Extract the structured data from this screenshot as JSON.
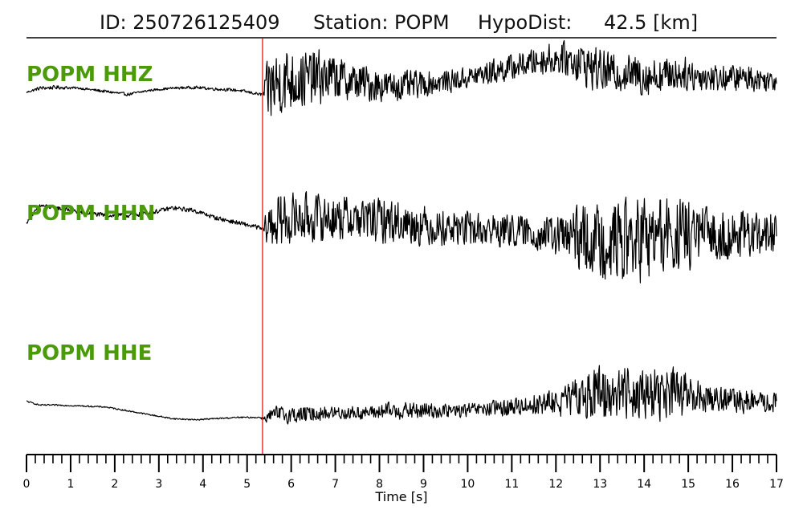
{
  "title": {
    "id_text": "ID: 250726125409",
    "station_text": "Station: POPM",
    "dist_label": "HypoDist:",
    "dist_value": "42.5 [km]"
  },
  "colors": {
    "label": "#4a9a0a",
    "pick_line": "#ee2222",
    "trace": "#000000"
  },
  "chart_data": {
    "type": "line",
    "xlabel": "Time [s]",
    "xlim": [
      0,
      17
    ],
    "x_ticks": [
      "0",
      "1",
      "2",
      "3",
      "4",
      "5",
      "6",
      "7",
      "8",
      "9",
      "10",
      "11",
      "12",
      "13",
      "14",
      "15",
      "16",
      "17"
    ],
    "minor_tick_step": 0.2,
    "grid": false,
    "legend": "none",
    "pick_time": 5.35,
    "series": [
      {
        "name": "POPM HHZ",
        "channel": "HHZ",
        "t": [
          0,
          0.3,
          0.7,
          1.2,
          1.8,
          2.3,
          2.8,
          3.3,
          3.8,
          4.3,
          4.8,
          5.3,
          5.35,
          5.5,
          5.65,
          5.85,
          6.2,
          6.6,
          7,
          7.4,
          7.8,
          8.2,
          8.6,
          9,
          9.4,
          9.8,
          10.2,
          10.6,
          11,
          11.4,
          11.8,
          12.2,
          12.5,
          12.8,
          13.1,
          13.4,
          13.7,
          14,
          14.3,
          14.6,
          14.9,
          15.2,
          15.5,
          15.8,
          16.1,
          16.4,
          16.7,
          17
        ],
        "env": [
          0.02,
          0.05,
          0.05,
          0.03,
          0.04,
          0.04,
          0.03,
          0.03,
          0.04,
          0.04,
          0.04,
          0.04,
          0.05,
          1.0,
          0.95,
          0.9,
          0.8,
          0.75,
          0.6,
          0.5,
          0.5,
          0.4,
          0.4,
          0.35,
          0.3,
          0.3,
          0.3,
          0.35,
          0.35,
          0.35,
          0.4,
          0.45,
          0.55,
          0.6,
          0.55,
          0.5,
          0.5,
          0.55,
          0.5,
          0.45,
          0.45,
          0.4,
          0.4,
          0.35,
          0.35,
          0.35,
          0.3,
          0.3
        ],
        "mean": [
          0,
          0.1,
          0.12,
          0.1,
          0.02,
          -0.05,
          0.05,
          0.1,
          0.12,
          0.08,
          0.05,
          -0.05,
          -0.05,
          0.1,
          0.2,
          0.3,
          0.3,
          0.35,
          0.35,
          0.25,
          0.2,
          0.15,
          0.15,
          0.2,
          0.25,
          0.3,
          0.4,
          0.5,
          0.6,
          0.7,
          0.8,
          0.8,
          0.75,
          0.6,
          0.5,
          0.45,
          0.45,
          0.4,
          0.4,
          0.45,
          0.45,
          0.4,
          0.35,
          0.35,
          0.35,
          0.35,
          0.3,
          0.3
        ]
      },
      {
        "name": "POPM HHN",
        "channel": "HHN",
        "t": [
          0,
          0.3,
          0.7,
          1.2,
          1.8,
          2.3,
          2.8,
          3.3,
          3.8,
          4.3,
          4.8,
          5.3,
          5.35,
          5.5,
          5.65,
          5.85,
          6.2,
          6.6,
          7,
          7.4,
          7.8,
          8.2,
          8.6,
          9,
          9.4,
          9.8,
          10.2,
          10.6,
          11,
          11.4,
          11.8,
          12.2,
          12.5,
          12.8,
          13.1,
          13.4,
          13.7,
          14,
          14.3,
          14.6,
          14.9,
          15.2,
          15.5,
          15.8,
          16.1,
          16.4,
          16.7,
          17
        ],
        "env": [
          0.03,
          0.05,
          0.05,
          0.05,
          0.05,
          0.05,
          0.05,
          0.05,
          0.05,
          0.05,
          0.05,
          0.05,
          0.08,
          0.55,
          0.6,
          0.6,
          0.55,
          0.55,
          0.5,
          0.5,
          0.5,
          0.5,
          0.45,
          0.45,
          0.4,
          0.4,
          0.4,
          0.4,
          0.35,
          0.35,
          0.4,
          0.6,
          0.7,
          0.75,
          0.85,
          0.9,
          0.95,
          1.0,
          0.95,
          0.9,
          0.8,
          0.7,
          0.6,
          0.55,
          0.55,
          0.5,
          0.5,
          0.5
        ],
        "mean": [
          0.2,
          0.55,
          0.5,
          0.42,
          0.35,
          0.35,
          0.4,
          0.5,
          0.45,
          0.3,
          0.2,
          0.1,
          0.05,
          0.15,
          0.2,
          0.25,
          0.3,
          0.3,
          0.3,
          0.3,
          0.25,
          0.25,
          0.2,
          0.15,
          0.1,
          0.1,
          0.05,
          0.05,
          0.05,
          0,
          -0.05,
          -0.1,
          -0.1,
          -0.15,
          -0.15,
          -0.15,
          -0.15,
          -0.15,
          -0.1,
          -0.1,
          -0.05,
          -0.05,
          -0.05,
          -0.05,
          -0.05,
          -0.05,
          -0.05,
          -0.05
        ]
      },
      {
        "name": "POPM HHE",
        "channel": "HHE",
        "t": [
          0,
          0.3,
          0.7,
          1.2,
          1.8,
          2.3,
          2.8,
          3.3,
          3.8,
          4.3,
          4.8,
          5.3,
          5.35,
          5.5,
          5.65,
          5.85,
          6.2,
          6.6,
          7,
          7.4,
          7.8,
          8.2,
          8.6,
          9,
          9.4,
          9.8,
          10.2,
          10.6,
          11,
          11.4,
          11.8,
          12.2,
          12.5,
          12.8,
          13.1,
          13.4,
          13.7,
          14,
          14.3,
          14.6,
          14.9,
          15.2,
          15.5,
          15.8,
          16.1,
          16.4,
          16.7,
          17
        ],
        "env": [
          0.02,
          0.02,
          0.02,
          0.02,
          0.02,
          0.02,
          0.02,
          0.02,
          0.02,
          0.02,
          0.02,
          0.02,
          0.05,
          0.2,
          0.25,
          0.25,
          0.25,
          0.2,
          0.2,
          0.2,
          0.2,
          0.25,
          0.25,
          0.25,
          0.2,
          0.2,
          0.2,
          0.25,
          0.25,
          0.3,
          0.35,
          0.45,
          0.6,
          0.75,
          0.8,
          0.8,
          0.75,
          0.7,
          0.75,
          0.8,
          0.7,
          0.5,
          0.4,
          0.35,
          0.35,
          0.35,
          0.3,
          0.3
        ],
        "mean": [
          0.3,
          0.2,
          0.2,
          0.18,
          0.15,
          0.05,
          -0.05,
          -0.15,
          -0.18,
          -0.15,
          -0.12,
          -0.12,
          -0.15,
          -0.1,
          -0.05,
          -0.05,
          -0.05,
          -0.02,
          0,
          0,
          0,
          0.05,
          0.05,
          0.05,
          0.05,
          0.05,
          0.08,
          0.1,
          0.15,
          0.2,
          0.25,
          0.3,
          0.4,
          0.5,
          0.5,
          0.55,
          0.55,
          0.5,
          0.5,
          0.5,
          0.45,
          0.4,
          0.4,
          0.35,
          0.3,
          0.3,
          0.25,
          0.25
        ]
      }
    ]
  }
}
